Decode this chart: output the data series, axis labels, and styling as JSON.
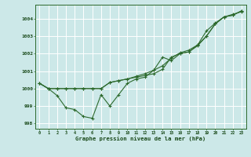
{
  "background_color": "#cce8e8",
  "plot_bg_color": "#cce8e8",
  "grid_color": "#b0d0d0",
  "line_color": "#2d6a2d",
  "marker_color": "#2d6a2d",
  "xlabel": "Graphe pression niveau de la mer (hPa)",
  "ylim": [
    997.7,
    1004.8
  ],
  "xlim": [
    -0.5,
    23.5
  ],
  "yticks": [
    998,
    999,
    1000,
    1001,
    1002,
    1003,
    1004
  ],
  "xtick_labels": [
    "0",
    "1",
    "2",
    "3",
    "4",
    "5",
    "6",
    "7",
    "8",
    "9",
    "10",
    "11",
    "12",
    "13",
    "14",
    "15",
    "16",
    "17",
    "18",
    "19",
    "20",
    "21",
    "22",
    "23"
  ],
  "series": [
    [
      1000.3,
      1000.0,
      999.6,
      998.9,
      998.8,
      998.4,
      998.3,
      999.65,
      999.0,
      999.65,
      1000.3,
      1000.55,
      1000.65,
      1001.05,
      1001.8,
      1001.6,
      1002.0,
      1002.1,
      1002.45,
      1003.0,
      1003.7,
      1004.1,
      1004.25,
      1004.4
    ],
    [
      1000.3,
      1000.0,
      1000.0,
      1000.0,
      1000.0,
      1000.0,
      1000.0,
      1000.0,
      1000.35,
      1000.45,
      1000.55,
      1000.65,
      1000.75,
      1000.85,
      1001.1,
      1001.8,
      1002.0,
      1002.1,
      1002.5,
      1003.0,
      1003.7,
      1004.1,
      1004.2,
      1004.45
    ],
    [
      1000.3,
      1000.0,
      1000.0,
      1000.0,
      1000.0,
      1000.0,
      1000.0,
      1000.0,
      1000.35,
      1000.45,
      1000.55,
      1000.7,
      1000.85,
      1001.05,
      1001.3,
      1001.75,
      1002.05,
      1002.2,
      1002.5,
      1003.3,
      1003.75,
      1004.1,
      1004.2,
      1004.45
    ]
  ]
}
